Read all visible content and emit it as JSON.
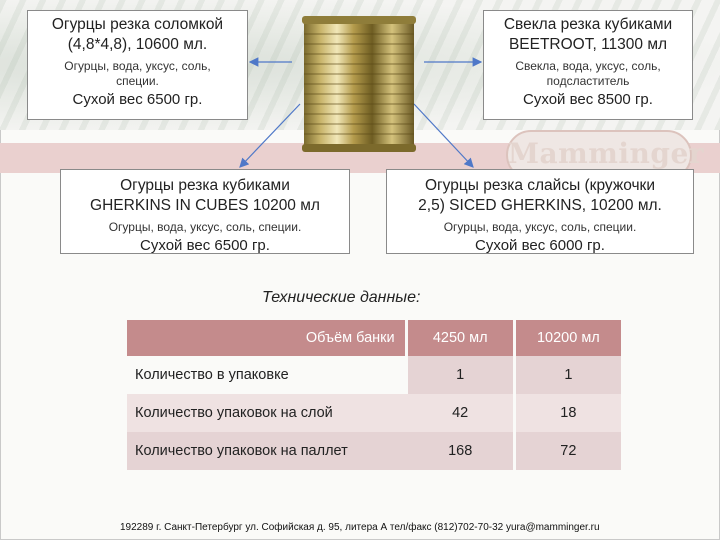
{
  "products": {
    "top_left": {
      "title_line1": "Огурцы резка соломкой",
      "title_line2": "(4,8*4,8), 10600 мл.",
      "ingredients_line1": "Огурцы, вода, уксус, соль,",
      "ingredients_line2": "специи.",
      "dry_weight": "Сухой вес 6500 гр."
    },
    "top_right": {
      "title_line1": "Свекла резка кубиками",
      "title_line2": "BEETROOT, 11300 мл",
      "ingredients_line1": "Свекла, вода, уксус, соль,",
      "ingredients_line2": "подсластитель",
      "dry_weight": "Сухой вес 8500 гр."
    },
    "mid_left": {
      "title_line1": "Огурцы резка кубиками",
      "title_line2": "GHERKINS IN CUBES 10200 мл",
      "ingredients": "Огурцы, вода, уксус, соль, специи.",
      "dry_weight": "Сухой вес 6500 гр."
    },
    "mid_right": {
      "title_line1": "Огурцы резка слайсы (кружочки",
      "title_line2": "2,5) SICED GHERKINS, 10200 мл.",
      "ingredients": "Огурцы, вода, уксус, соль, специи.",
      "dry_weight": "Сухой вес 6000 гр."
    }
  },
  "brand_logo_text": "Mamminger",
  "spec_title": "Технические данные:",
  "spec_table": {
    "header_label": "Объём банки",
    "columns": [
      "4250 мл",
      "10200 мл"
    ],
    "rows": [
      {
        "label": "Количество в упаковке",
        "values": [
          "1",
          "1"
        ]
      },
      {
        "label": "Количество упаковок на слой",
        "values": [
          "42",
          "18"
        ]
      },
      {
        "label": "Количество упаковок на паллет",
        "values": [
          "168",
          "72"
        ]
      }
    ]
  },
  "footer": "192289 г. Санкт-Петербург ул. Софийская д. 95, литера А тел/факс (812)702-70-32 yura@mamminger.ru",
  "colors": {
    "table_header": "#c48b8c",
    "table_row_dark": "#e5d3d4",
    "table_row_light": "#efe2e2",
    "connector_line": "#4f78c8",
    "pink_band": "#ead0cf"
  }
}
